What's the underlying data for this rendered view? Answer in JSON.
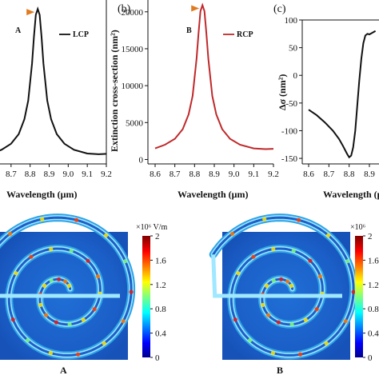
{
  "panels": {
    "b": "(b)",
    "c": "(c)"
  },
  "chart_data": [
    {
      "id": "a",
      "type": "line",
      "xlabel": "Wavelength (μm)",
      "ylabel": "",
      "xlim": [
        8.6,
        9.2
      ],
      "ylim": [
        0,
        22000
      ],
      "x_ticks": [
        "8.7",
        "8.8",
        "8.9",
        "9.0",
        "9.1",
        "9.2"
      ],
      "series": [
        {
          "name": "LCP",
          "color": "#111111",
          "x": [
            8.6,
            8.65,
            8.7,
            8.74,
            8.77,
            8.79,
            8.81,
            8.82,
            8.83,
            8.84,
            8.85,
            8.86,
            8.87,
            8.89,
            8.91,
            8.94,
            8.98,
            9.03,
            9.1,
            9.16,
            9.2
          ],
          "y": [
            1400,
            1900,
            2700,
            4000,
            6000,
            8500,
            13500,
            17000,
            20000,
            20800,
            20000,
            17000,
            13500,
            8500,
            6000,
            4000,
            2700,
            1900,
            1400,
            1300,
            1350
          ]
        }
      ],
      "annotation": {
        "label": "A",
        "x": 8.84,
        "y": 20800,
        "color": "#e07a1f"
      }
    },
    {
      "id": "b",
      "type": "line",
      "xlabel": "Wavelength (μm)",
      "ylabel": "Extinction cross-section (nm²)",
      "xlim": [
        8.6,
        9.2
      ],
      "ylim": [
        -600,
        21600
      ],
      "y_ticks": [
        0,
        5000,
        10000,
        15000,
        20000
      ],
      "x_ticks": [
        "8.6",
        "8.7",
        "8.8",
        "8.9",
        "9.0",
        "9.1",
        "9.2"
      ],
      "series": [
        {
          "name": "RCP",
          "color": "#c0292b",
          "x": [
            8.6,
            8.65,
            8.7,
            8.74,
            8.77,
            8.79,
            8.81,
            8.82,
            8.83,
            8.84,
            8.85,
            8.86,
            8.87,
            8.89,
            8.91,
            8.94,
            8.98,
            9.03,
            9.1,
            9.16,
            9.2
          ],
          "y": [
            1500,
            2000,
            2800,
            4100,
            6100,
            8600,
            13600,
            17100,
            20100,
            20900,
            20100,
            17100,
            13600,
            8600,
            6100,
            4100,
            2800,
            2000,
            1500,
            1400,
            1450
          ]
        }
      ],
      "annotation": {
        "label": "B",
        "x": 8.84,
        "y": 20900,
        "color": "#e07a1f"
      }
    },
    {
      "id": "c",
      "type": "line",
      "xlabel": "Wavelength (μm)",
      "ylabel": "Δσ (nm²)",
      "xlim": [
        8.6,
        9.2
      ],
      "ylim": [
        -160,
        100
      ],
      "y_ticks": [
        100,
        50,
        0,
        -50,
        -100,
        -150
      ],
      "x_ticks": [
        "8.6",
        "8.7",
        "8.8",
        "8.9"
      ],
      "series": [
        {
          "name": "",
          "color": "#111111",
          "x": [
            8.6,
            8.64,
            8.68,
            8.72,
            8.75,
            8.77,
            8.79,
            8.8,
            8.81,
            8.82,
            8.83,
            8.84,
            8.85,
            8.86,
            8.87,
            8.88,
            8.89,
            8.9,
            8.91,
            8.93
          ],
          "y": [
            -62,
            -72,
            -85,
            -100,
            -115,
            -128,
            -142,
            -148,
            -145,
            -130,
            -100,
            -55,
            -10,
            30,
            58,
            72,
            75,
            74,
            76,
            80
          ]
        }
      ]
    }
  ],
  "maps": [
    {
      "label": "A",
      "colorbar": {
        "unit": "×10⁶ V/m",
        "ticks": [
          "2",
          "1.6",
          "1.2",
          "0.8",
          "0.4",
          "0"
        ],
        "min": 0,
        "max": 2
      }
    },
    {
      "label": "B",
      "colorbar": {
        "unit": "×10⁶",
        "ticks": [
          "2",
          "1.6",
          "1.2",
          "0.8",
          "0.4",
          "0"
        ],
        "min": 0,
        "max": 2
      }
    }
  ]
}
